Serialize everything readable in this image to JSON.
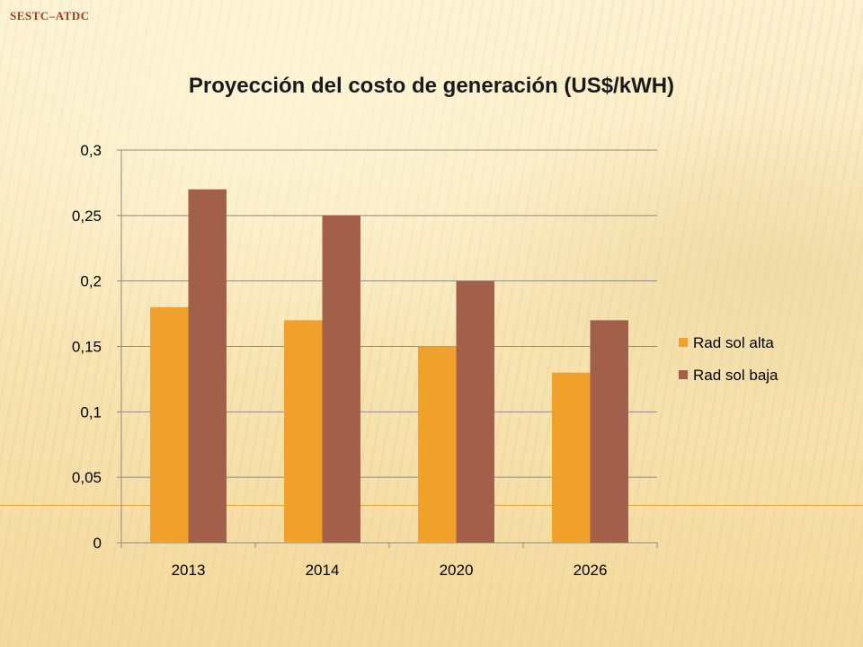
{
  "slide": {
    "footer_text": "SESTC–ATDC"
  },
  "chart_data": {
    "type": "bar",
    "title": "Proyección del costo de generación (US$/kWH)",
    "categories": [
      "2013",
      "2014",
      "2020",
      "2026"
    ],
    "series": [
      {
        "name": "Rad sol alta",
        "color": "#f0a12c",
        "values": [
          0.18,
          0.17,
          0.15,
          0.13
        ]
      },
      {
        "name": "Rad sol baja",
        "color": "#a2604b",
        "values": [
          0.27,
          0.25,
          0.2,
          0.17
        ]
      }
    ],
    "yticks": [
      "0",
      "0,05",
      "0,1",
      "0,15",
      "0,2",
      "0,25",
      "0,3"
    ],
    "ylim": [
      0,
      0.3
    ],
    "grid": true,
    "legend_position": "right"
  }
}
